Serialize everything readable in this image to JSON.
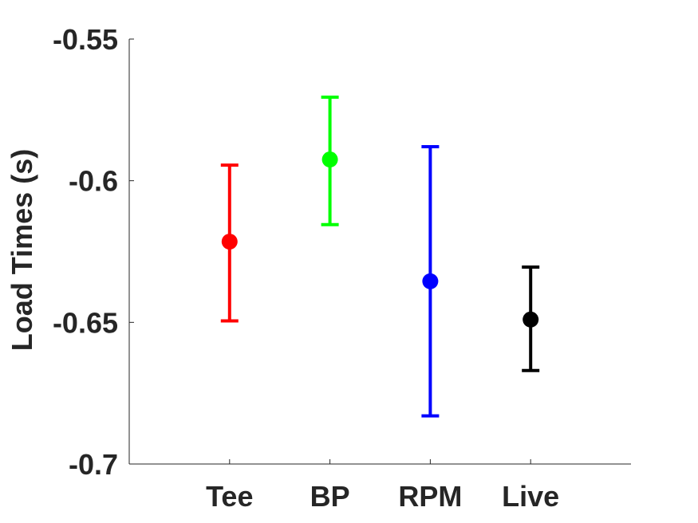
{
  "chart_data": {
    "type": "scatter",
    "subtype": "errorbar",
    "title": "",
    "xlabel": "",
    "ylabel": "Load Times (s)",
    "categories": [
      "Tee",
      "BP",
      "RPM",
      "Live"
    ],
    "xlim": [
      0,
      5
    ],
    "ylim": [
      -0.7,
      -0.55
    ],
    "yticks": [
      -0.7,
      -0.65,
      -0.6,
      -0.55
    ],
    "ytick_labels": [
      "-0.7",
      "-0.65",
      "-0.6",
      "-0.55"
    ],
    "grid": false,
    "legend": "none",
    "points": [
      {
        "category": "Tee",
        "mean": -0.6215,
        "lower": -0.6495,
        "upper": -0.5945,
        "color": "#ff0000"
      },
      {
        "category": "BP",
        "mean": -0.5925,
        "lower": -0.6155,
        "upper": -0.5705,
        "color": "#00ff00"
      },
      {
        "category": "RPM",
        "mean": -0.6355,
        "lower": -0.683,
        "upper": -0.588,
        "color": "#0000ff"
      },
      {
        "category": "Live",
        "mean": -0.649,
        "lower": -0.667,
        "upper": -0.6305,
        "color": "#000000"
      }
    ]
  }
}
